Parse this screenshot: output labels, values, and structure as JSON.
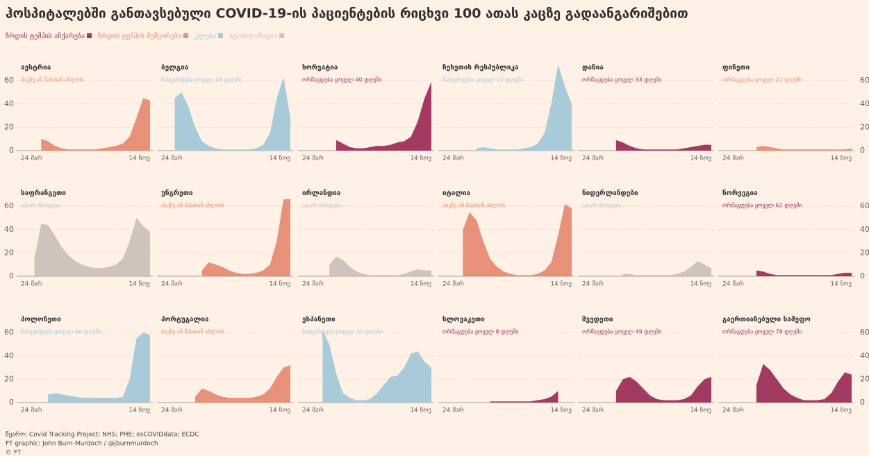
{
  "chart_data": {
    "type": "area",
    "title": "ჰოსპიტალებში განთავსებული COVID-19-ის პაციენტების რიცხვი 100 ათას კაცზე გადაანგარიშებით",
    "legend": [
      {
        "name": "ზრდის ტემპის აჩქარება",
        "color": "#a23a62"
      },
      {
        "name": "ზრდის ტემპის შემცირება",
        "color": "#e8917a"
      },
      {
        "name": "კლება",
        "color": "#a9cbd9"
      },
      {
        "name": "სტაბილიზაცია",
        "color": "#cfc4bb"
      }
    ],
    "categories": [
      "24 მარ",
      null,
      null,
      null,
      null,
      null,
      null,
      null,
      null,
      null,
      null,
      null,
      null,
      null,
      null,
      null,
      null,
      null,
      null,
      "14 ნოე"
    ],
    "ylim": [
      0,
      75
    ],
    "yticks": [
      0,
      20,
      40,
      60
    ],
    "grid": true,
    "panels": [
      {
        "name": "ავსტრია",
        "subtitle": "პიკზე ან მასთან ახლოს",
        "color": "#e8917a",
        "values": [
          null,
          null,
          null,
          10,
          8,
          4,
          2,
          1,
          1,
          1,
          1,
          1,
          2,
          3,
          4,
          6,
          12,
          28,
          45,
          43
        ]
      },
      {
        "name": "ბელგია",
        "subtitle": "ნახევრდება ყოველ 48 დღეში",
        "color": "#a9cbd9",
        "values": [
          null,
          null,
          45,
          50,
          38,
          20,
          8,
          4,
          2,
          1,
          1,
          1,
          1,
          1,
          2,
          5,
          15,
          45,
          63,
          28
        ]
      },
      {
        "name": "ხორვატია",
        "subtitle": "ორმაგდება ყოველ 40 დღეში",
        "color": "#a23a62",
        "values": [
          null,
          null,
          null,
          null,
          null,
          9,
          6,
          3,
          2,
          2,
          3,
          4,
          4,
          5,
          7,
          8,
          12,
          25,
          45,
          59
        ]
      },
      {
        "name": "ჩეხეთის რესპუბლიკა",
        "subtitle": "ნახევრდება ყოველ 37 დღეში",
        "color": "#a9cbd9",
        "values": [
          null,
          null,
          null,
          null,
          null,
          2,
          3,
          2,
          1,
          1,
          1,
          1,
          2,
          3,
          6,
          15,
          40,
          74,
          55,
          40
        ]
      },
      {
        "name": "დანია",
        "subtitle": "ორმაგდება ყოველ 33 დღეში",
        "color": "#a23a62",
        "values": [
          null,
          null,
          null,
          null,
          null,
          9,
          7,
          4,
          2,
          1,
          1,
          1,
          1,
          1,
          1,
          2,
          3,
          4,
          5,
          5
        ]
      },
      {
        "name": "ფინეთი",
        "subtitle": "ორმაგდება ყოველ 22 დღეში",
        "color": "#e8917a",
        "values": [
          null,
          null,
          null,
          null,
          null,
          3,
          4,
          3,
          2,
          1,
          1,
          1,
          1,
          1,
          1,
          1,
          1,
          1,
          1,
          2
        ]
      },
      {
        "name": "საფრანგეთი",
        "subtitle": "აღარ იზრდება",
        "color": "#cfc4bb",
        "values": [
          null,
          null,
          15,
          45,
          44,
          35,
          25,
          18,
          13,
          10,
          8,
          7,
          7,
          8,
          10,
          15,
          30,
          50,
          43,
          38
        ]
      },
      {
        "name": "უნგრეთი",
        "subtitle": "პიკზე ან მასთან ახლოს",
        "color": "#e8917a",
        "values": [
          null,
          null,
          null,
          null,
          null,
          null,
          5,
          12,
          10,
          8,
          5,
          3,
          2,
          2,
          3,
          5,
          10,
          30,
          66,
          66
        ]
      },
      {
        "name": "ირლანდია",
        "subtitle": "აღარ იზრდება",
        "color": "#cfc4bb",
        "values": [
          null,
          null,
          null,
          null,
          10,
          17,
          14,
          8,
          4,
          2,
          1,
          1,
          1,
          1,
          1,
          2,
          4,
          6,
          5,
          5
        ]
      },
      {
        "name": "იტალია",
        "subtitle": "პიკზე ან მასთან ახლოს",
        "color": "#e8917a",
        "values": [
          null,
          null,
          null,
          40,
          55,
          48,
          30,
          15,
          8,
          4,
          2,
          1,
          1,
          1,
          2,
          5,
          12,
          35,
          62,
          58
        ]
      },
      {
        "name": "ნიდერლანდები",
        "subtitle": "აღარ იზრდება",
        "color": "#cfc4bb",
        "values": [
          null,
          null,
          null,
          null,
          null,
          null,
          2,
          2,
          1,
          1,
          1,
          1,
          1,
          1,
          2,
          4,
          8,
          13,
          10,
          7
        ]
      },
      {
        "name": "ნორვეგია",
        "subtitle": "ორმაგდება ყოველ 62 დღეში",
        "color": "#a23a62",
        "values": [
          null,
          null,
          null,
          null,
          null,
          5,
          4,
          2,
          1,
          1,
          1,
          1,
          1,
          1,
          1,
          1,
          1,
          2,
          3,
          3
        ]
      },
      {
        "name": "პოლონეთი",
        "subtitle": "ნახევრდება ყოველ 66 დღეში",
        "color": "#a9cbd9",
        "values": [
          null,
          null,
          null,
          null,
          7,
          8,
          7,
          6,
          5,
          4,
          4,
          4,
          4,
          4,
          4,
          5,
          20,
          55,
          60,
          58
        ]
      },
      {
        "name": "პორტუგალია",
        "subtitle": "პიკზე ან მასთან ახლოს",
        "color": "#e8917a",
        "values": [
          null,
          null,
          null,
          null,
          null,
          5,
          12,
          10,
          7,
          5,
          4,
          4,
          4,
          4,
          5,
          7,
          12,
          22,
          30,
          32
        ]
      },
      {
        "name": "ესპანეთი",
        "subtitle": "ნახევრდება ყოველ 30 დღეში",
        "color": "#a9cbd9",
        "values": [
          null,
          null,
          null,
          62,
          50,
          25,
          8,
          4,
          2,
          2,
          3,
          8,
          15,
          22,
          23,
          30,
          42,
          44,
          35,
          30
        ]
      },
      {
        "name": "სლოვაკეთი",
        "subtitle": "ორმაგდება ყოველ 8 დღეში",
        "color": "#a23a62",
        "values": [
          null,
          null,
          null,
          null,
          null,
          null,
          null,
          1,
          1,
          1,
          1,
          1,
          1,
          1,
          2,
          3,
          5,
          10,
          null,
          null
        ]
      },
      {
        "name": "შვედეთი",
        "subtitle": "ორმაგდება ყოველ 49 დღეში",
        "color": "#a23a62",
        "values": [
          null,
          null,
          null,
          null,
          null,
          10,
          20,
          22,
          18,
          12,
          6,
          3,
          2,
          2,
          2,
          3,
          6,
          14,
          20,
          22
        ]
      },
      {
        "name": "გაერთიანებული სამეფო",
        "subtitle": "ორმაგდება ყოველ 78 დღეში",
        "color": "#a23a62",
        "values": [
          null,
          null,
          null,
          null,
          null,
          15,
          33,
          28,
          20,
          12,
          7,
          4,
          2,
          2,
          2,
          3,
          8,
          18,
          26,
          24
        ]
      }
    ],
    "source": [
      "წყარო: Covid Tracking Project; NHS; PHE; esCOVIDdata; ECDC",
      "FT graphic: John Burn-Murdoch / @jburnmurdoch",
      "© FT"
    ]
  }
}
